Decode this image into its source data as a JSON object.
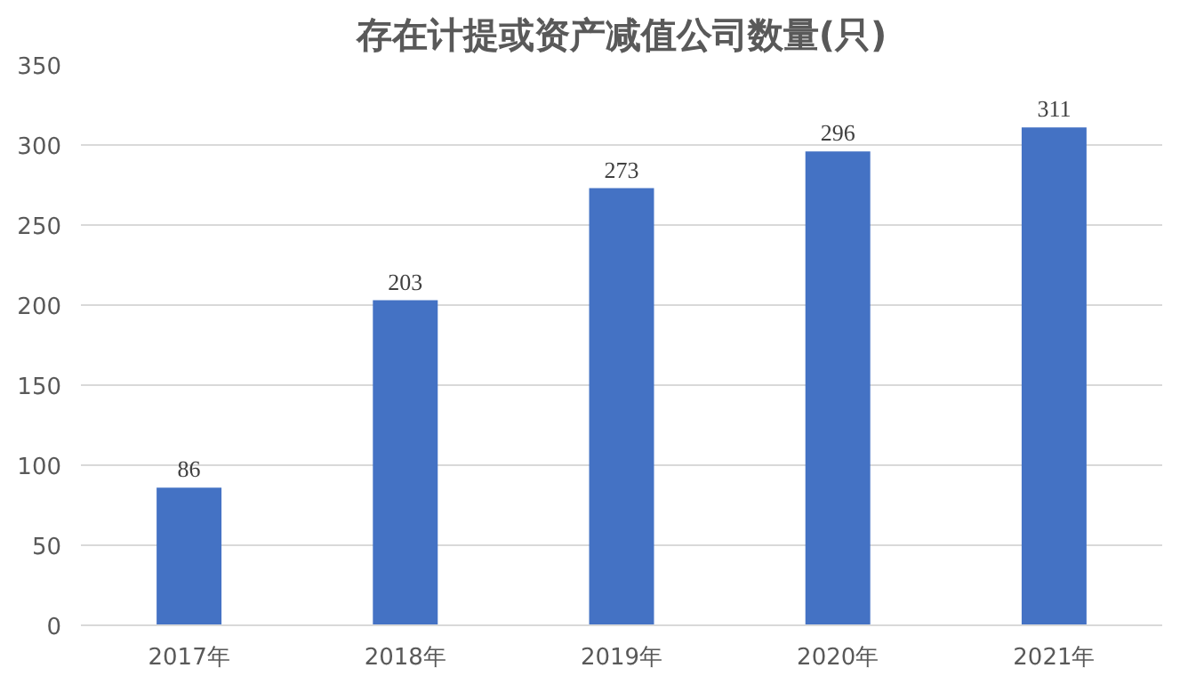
{
  "chart_data": {
    "type": "bar",
    "title": "存在计提或资产减值公司数量(只)",
    "categories": [
      "2017年",
      "2018年",
      "2019年",
      "2020年",
      "2021年"
    ],
    "values": [
      86,
      203,
      273,
      296,
      311
    ],
    "color": "#4472c4",
    "ylim": [
      0,
      350
    ],
    "yticks": [
      0,
      50,
      100,
      150,
      200,
      250,
      300,
      350
    ],
    "grid": "y",
    "data_labels": true
  }
}
